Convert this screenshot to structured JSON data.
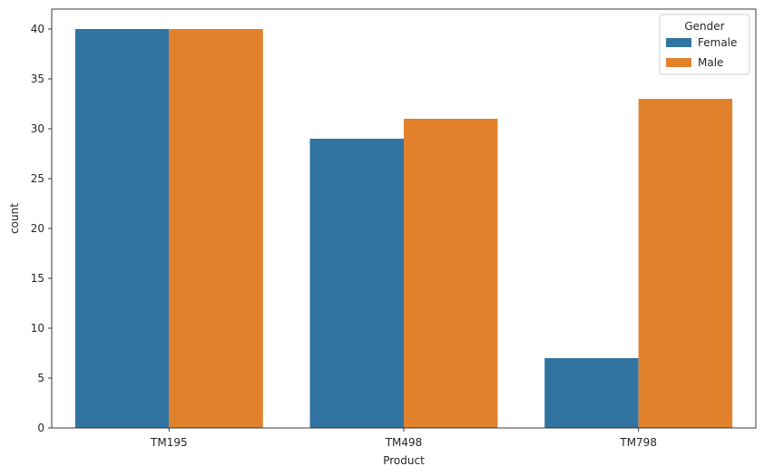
{
  "chart_data": {
    "type": "bar",
    "categories": [
      "TM195",
      "TM498",
      "TM798"
    ],
    "series": [
      {
        "name": "Female",
        "values": [
          40,
          29,
          7
        ],
        "color": "#3274a1"
      },
      {
        "name": "Male",
        "values": [
          40,
          31,
          33
        ],
        "color": "#e1812c"
      }
    ],
    "xlabel": "Product",
    "ylabel": "count",
    "ylim": [
      0,
      42
    ],
    "yticks": [
      0,
      5,
      10,
      15,
      20,
      25,
      30,
      35,
      40
    ],
    "grid": false,
    "legend": {
      "title": "Gender",
      "placement": "top-right"
    }
  }
}
